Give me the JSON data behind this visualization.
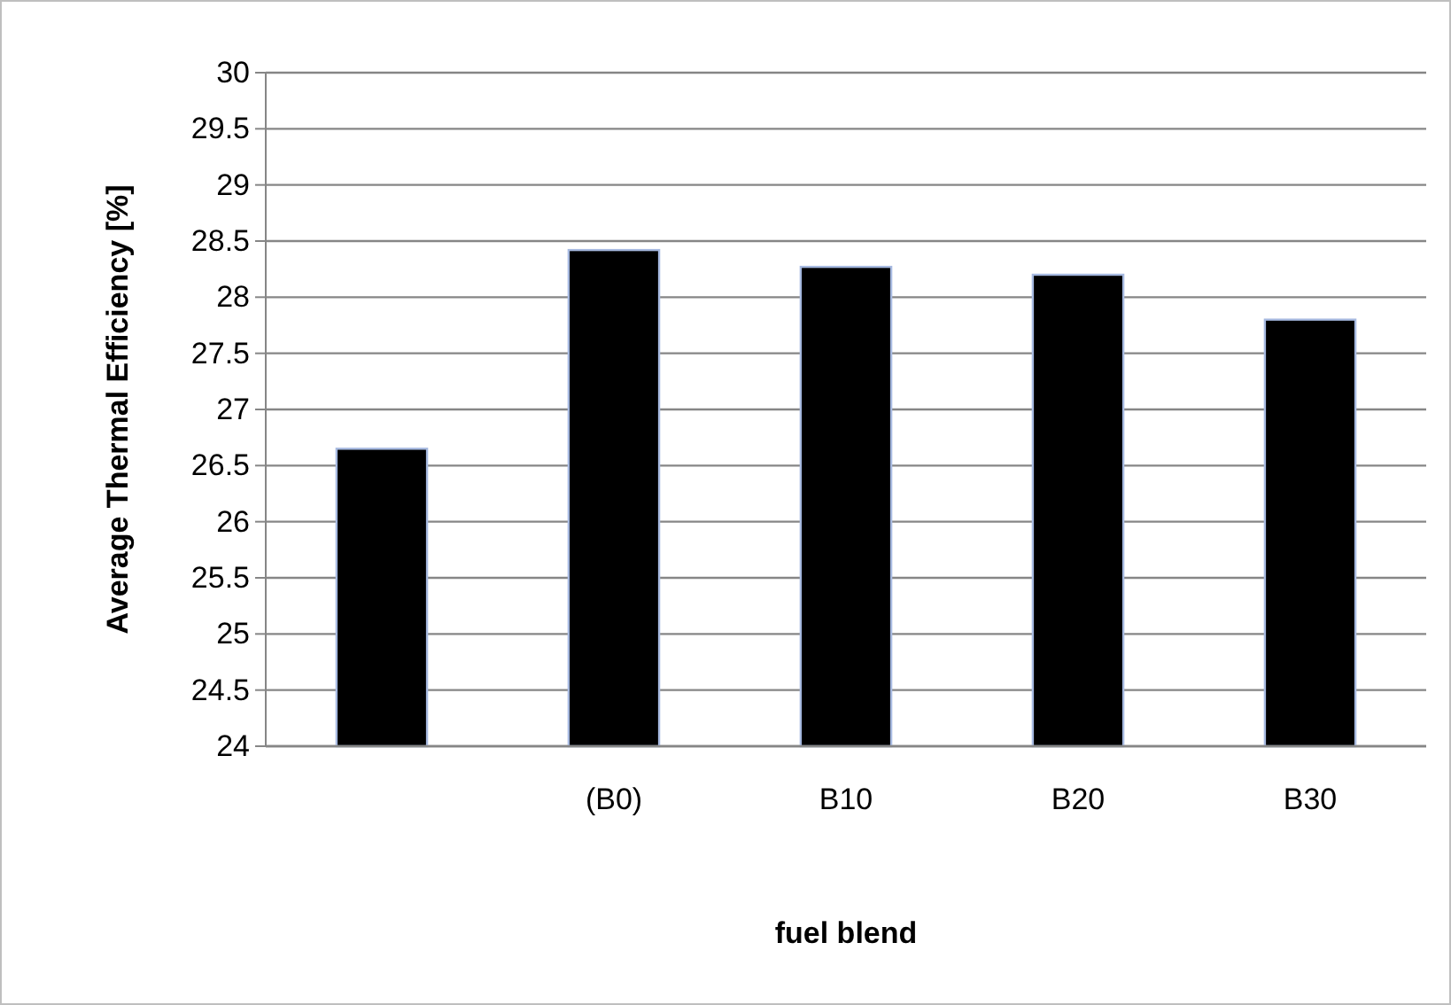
{
  "chart_data": {
    "type": "bar",
    "xlabel": "fuel blend",
    "ylabel": "Average Thermal Efficiency  [%]",
    "categories": [
      null,
      "(B0)",
      "B10",
      "B20",
      "B30"
    ],
    "values": [
      26.65,
      28.42,
      28.27,
      28.2,
      27.8
    ],
    "color": "#000000",
    "ylim": [
      24,
      30
    ],
    "yticks": [
      24,
      24.5,
      25,
      25.5,
      26,
      26.5,
      27,
      27.5,
      28,
      28.5,
      29,
      29.5,
      30
    ],
    "grid": "y"
  }
}
